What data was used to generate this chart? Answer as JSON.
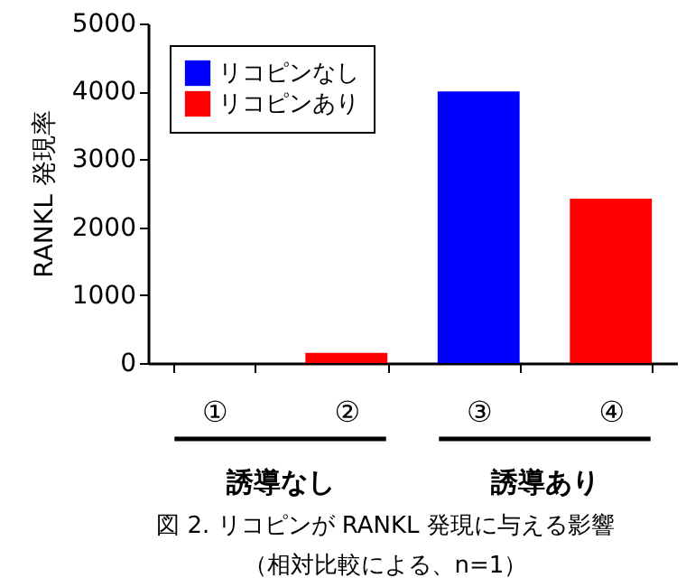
{
  "chart_data": {
    "type": "bar",
    "ylabel": "RANKL 発現率",
    "categories": [
      "①",
      "②",
      "③",
      "④"
    ],
    "series": [
      {
        "name": "リコピンなし",
        "color": "#0000ff",
        "values": [
          0,
          null,
          4000,
          null
        ]
      },
      {
        "name": "リコピンあり",
        "color": "#ff0000",
        "values": [
          null,
          150,
          null,
          2420
        ]
      }
    ],
    "ylim": [
      0,
      5000
    ],
    "yticks": [
      0,
      1000,
      2000,
      3000,
      4000,
      5000
    ],
    "grid": false,
    "legend": "top left",
    "annotations": [
      "誘導なし",
      "誘導あり",
      "図 2. リコピンが RANKL 発現に与える影響",
      "（相対比較による、n=1）"
    ]
  }
}
